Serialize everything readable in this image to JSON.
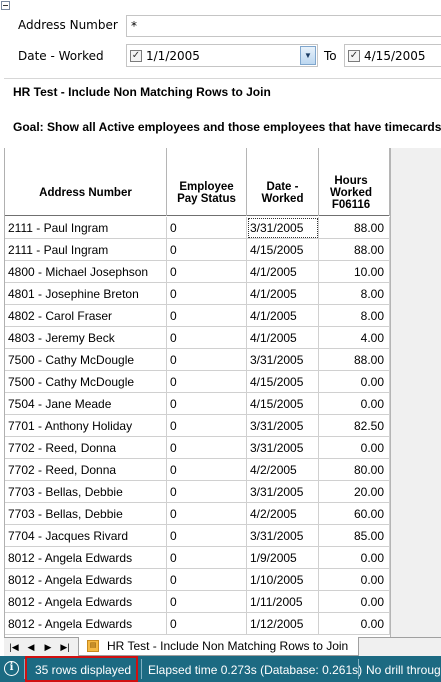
{
  "criteria": {
    "address_label": "Address Number",
    "address_value": "*",
    "date_label": "Date - Worked",
    "date_from": "1/1/2005",
    "date_from_checked": true,
    "to_label": "To",
    "date_to": "4/15/2005",
    "date_to_checked": true
  },
  "description": {
    "title": "HR Test - Include Non Matching Rows to Join",
    "goal": "Goal:  Show all Active employees and those employees that have timecards"
  },
  "grid": {
    "columns": [
      {
        "label": "Address Number"
      },
      {
        "label": "Employee Pay Status"
      },
      {
        "label": "Date - Worked"
      },
      {
        "label": "Hours Worked F06116"
      }
    ],
    "rows": [
      [
        "2111 - Paul Ingram",
        "0",
        "3/31/2005",
        "88.00"
      ],
      [
        "2111 - Paul Ingram",
        "0",
        "4/15/2005",
        "88.00"
      ],
      [
        "4800 - Michael Josephson",
        "0",
        "4/1/2005",
        "10.00"
      ],
      [
        "4801 - Josephine Breton",
        "0",
        "4/1/2005",
        "8.00"
      ],
      [
        "4802 - Carol Fraser",
        "0",
        "4/1/2005",
        "8.00"
      ],
      [
        "4803 - Jeremy Beck",
        "0",
        "4/1/2005",
        "4.00"
      ],
      [
        "7500 - Cathy McDougle",
        "0",
        "3/31/2005",
        "88.00"
      ],
      [
        "7500 - Cathy McDougle",
        "0",
        "4/15/2005",
        "0.00"
      ],
      [
        "7504 - Jane Meade",
        "0",
        "4/15/2005",
        "0.00"
      ],
      [
        "7701 - Anthony Holiday",
        "0",
        "3/31/2005",
        "82.50"
      ],
      [
        "7702 - Reed, Donna",
        "0",
        "3/31/2005",
        "0.00"
      ],
      [
        "7702 - Reed, Donna",
        "0",
        "4/2/2005",
        "80.00"
      ],
      [
        "7703 - Bellas, Debbie",
        "0",
        "3/31/2005",
        "20.00"
      ],
      [
        "7703 - Bellas, Debbie",
        "0",
        "4/2/2005",
        "60.00"
      ],
      [
        "7704 - Jacques Rivard",
        "0",
        "3/31/2005",
        "85.00"
      ],
      [
        "8012 - Angela Edwards",
        "0",
        "1/9/2005",
        "0.00"
      ],
      [
        "8012 - Angela Edwards",
        "0",
        "1/10/2005",
        "0.00"
      ],
      [
        "8012 - Angela Edwards",
        "0",
        "1/11/2005",
        "0.00"
      ],
      [
        "8012 - Angela Edwards",
        "0",
        "1/12/2005",
        "0.00"
      ]
    ]
  },
  "tabs": {
    "active_label": "HR Test - Include Non Matching Rows to Join"
  },
  "status": {
    "rows_displayed": "35  rows displayed",
    "elapsed": "Elapsed time 0.273s (Database: 0.261s)",
    "drill": "No drill throug"
  },
  "colors": {
    "status_bar": "#1c6a82",
    "highlight_border": "#d01010"
  }
}
